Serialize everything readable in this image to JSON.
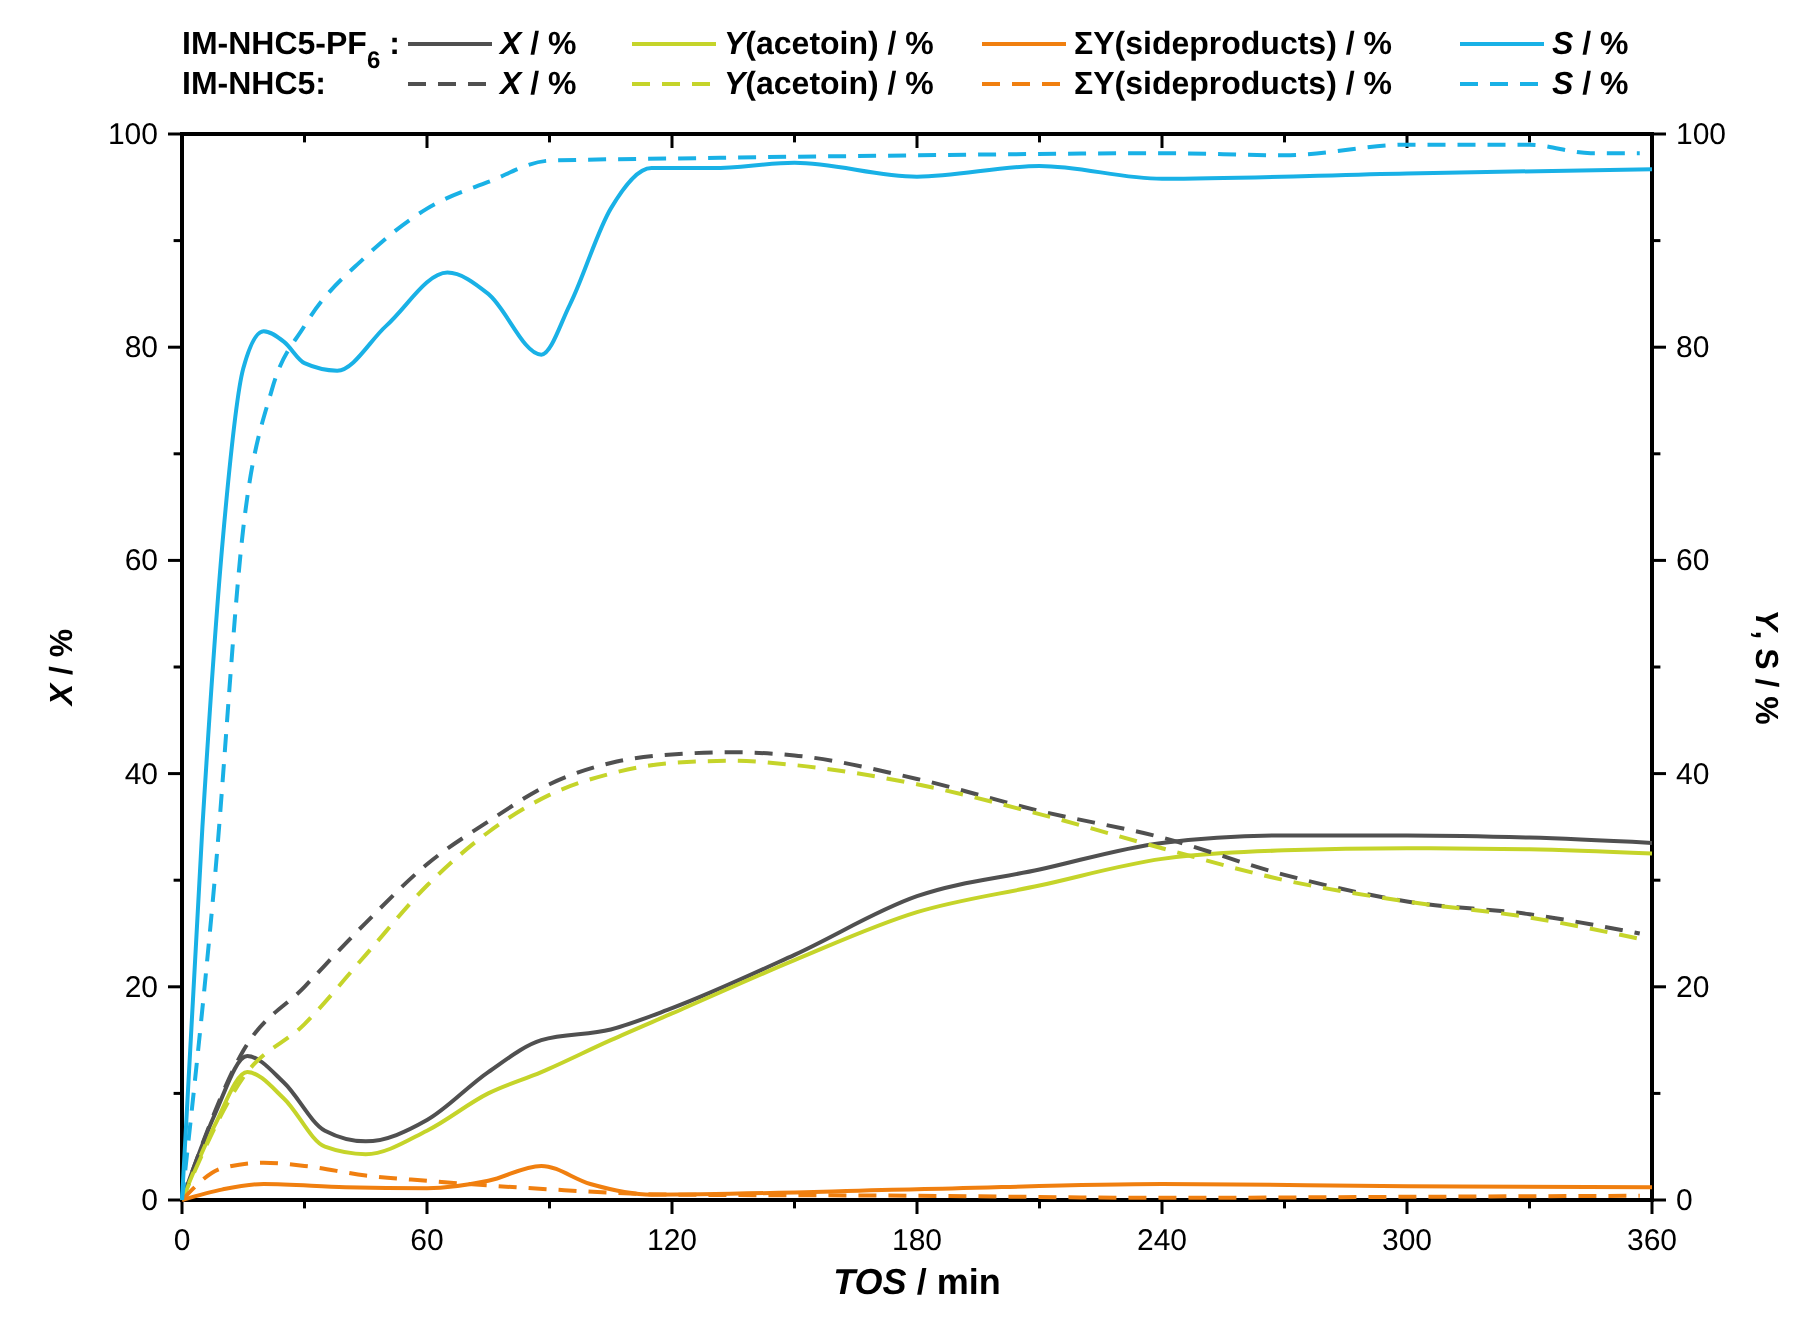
{
  "chart_data": {
    "type": "line",
    "xlabel": "TOS / min",
    "ylabel": "X / %",
    "y2label": "Y, S / %",
    "xlim": [
      0,
      360
    ],
    "xticks": [
      0,
      {
        "value": 30,
        "label": null
      },
      60,
      {
        "value": 90,
        "label": null
      },
      120,
      {
        "value": 150,
        "label": null
      },
      180,
      {
        "value": 210,
        "label": null
      },
      240,
      {
        "value": 270,
        "label": null
      },
      300,
      {
        "value": 330,
        "label": null
      },
      360
    ],
    "ylim": [
      0,
      100
    ],
    "yticks": [
      0,
      {
        "value": 10,
        "label": null
      },
      20,
      {
        "value": 30,
        "label": null
      },
      40,
      {
        "value": 50,
        "label": null
      },
      60,
      {
        "value": 70,
        "label": null
      },
      80,
      {
        "value": 90,
        "label": null
      },
      100
    ],
    "y2lim": [
      0,
      100
    ],
    "y2ticks": [
      0,
      {
        "value": 10,
        "label": null
      },
      20,
      {
        "value": 30,
        "label": null
      },
      40,
      {
        "value": 50,
        "label": null
      },
      60,
      {
        "value": 70,
        "label": null
      },
      80,
      {
        "value": 90,
        "label": null
      },
      100
    ],
    "annotations": [
      "IM-NHC5-PF$_{6}$ :",
      "IM-NHC5:"
    ],
    "legend": "top",
    "grid": false,
    "series": [
      {
        "name": "X / %",
        "color": "#505050",
        "line_style": "solid",
        "x": [
          0,
          8,
          16,
          25,
          35,
          45,
          60,
          75,
          88,
          105,
          120,
          150,
          180,
          210,
          240,
          270,
          300,
          330,
          360
        ],
        "values": [
          0,
          8,
          13.5,
          11,
          6.5,
          5.5,
          7.5,
          12,
          15,
          16,
          18,
          23,
          28.5,
          31,
          33.5,
          34.2,
          34.2,
          34,
          33.5
        ]
      },
      {
        "name": "Y(acetoin) / %",
        "color": "#c5d42a",
        "line_style": "solid",
        "x": [
          0,
          8,
          16,
          25,
          35,
          45,
          60,
          75,
          88,
          105,
          120,
          150,
          180,
          210,
          240,
          270,
          300,
          330,
          360
        ],
        "values": [
          0,
          7,
          12,
          9.5,
          5,
          4.3,
          6.5,
          10,
          12,
          15,
          17.5,
          22.5,
          27,
          29.5,
          32,
          32.8,
          33,
          32.9,
          32.5
        ]
      },
      {
        "name": "ΣY(sideproducts) / %",
        "color": "#f07f0f",
        "line_style": "solid",
        "x": [
          0,
          10,
          20,
          40,
          60,
          75,
          88,
          100,
          115,
          180,
          240,
          300,
          360
        ],
        "values": [
          0,
          1,
          1.5,
          1.2,
          1.1,
          1.8,
          3.2,
          1.5,
          0.5,
          1,
          1.5,
          1.3,
          1.2
        ]
      },
      {
        "name": "S / %",
        "color": "#19b1e6",
        "line_style": "solid",
        "x": [
          0,
          5,
          10,
          15,
          20,
          25,
          30,
          38,
          50,
          65,
          75,
          88,
          95,
          105,
          115,
          130,
          150,
          180,
          210,
          240,
          300,
          360
        ],
        "values": [
          0,
          35,
          62,
          78,
          81.5,
          80.5,
          78.5,
          77.8,
          82,
          87,
          85,
          79.3,
          84,
          93,
          96.8,
          96.8,
          97.3,
          96,
          97,
          95.8,
          96.3,
          96.7
        ]
      },
      {
        "name": "X / %",
        "color": "#505050",
        "line_style": "dashed",
        "x": [
          0,
          15,
          30,
          45,
          60,
          75,
          90,
          105,
          120,
          135,
          150,
          180,
          210,
          240,
          270,
          300,
          330,
          357
        ],
        "values": [
          0,
          14,
          20,
          26,
          31.5,
          35.5,
          39,
          41,
          41.8,
          42,
          41.7,
          39.5,
          36.5,
          34,
          30.5,
          28,
          26.8,
          25
        ]
      },
      {
        "name": "Y(acetoin) / %",
        "color": "#c5d42a",
        "line_style": "dashed",
        "x": [
          0,
          15,
          30,
          45,
          60,
          75,
          90,
          105,
          120,
          135,
          150,
          180,
          210,
          240,
          270,
          300,
          330,
          357
        ],
        "values": [
          0,
          11.5,
          16.5,
          23,
          29.5,
          34.5,
          38,
          40,
          41,
          41.2,
          40.8,
          39,
          36.2,
          33,
          30,
          28,
          26.5,
          24.5
        ]
      },
      {
        "name": "ΣY(sideproducts) / %",
        "color": "#f07f0f",
        "line_style": "dashed",
        "x": [
          0,
          10,
          20,
          30,
          45,
          60,
          90,
          120,
          180,
          240,
          300,
          357
        ],
        "values": [
          0,
          3,
          3.5,
          3.2,
          2.3,
          1.8,
          1,
          0.5,
          0.4,
          0.2,
          0.3,
          0.4
        ]
      },
      {
        "name": "S / %",
        "color": "#19b1e6",
        "line_style": "dashed",
        "x": [
          0,
          8,
          15,
          22,
          30,
          45,
          60,
          75,
          90,
          120,
          180,
          240,
          270,
          300,
          330,
          345,
          357
        ],
        "values": [
          0,
          30,
          63,
          76,
          82,
          88.5,
          93,
          95.5,
          97.5,
          97.7,
          98,
          98.2,
          98,
          99,
          99,
          98.2,
          98.2
        ]
      }
    ]
  }
}
